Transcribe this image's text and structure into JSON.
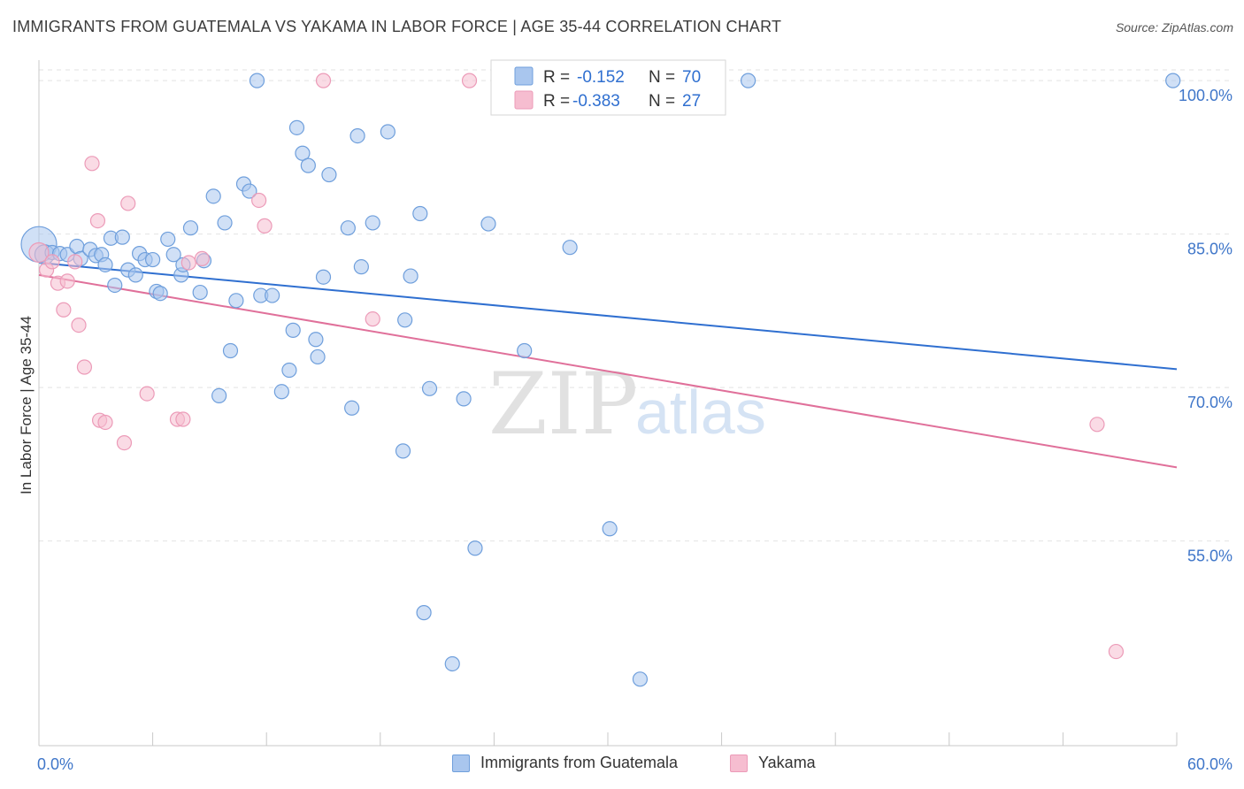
{
  "title": "IMMIGRANTS FROM GUATEMALA VS YAKAMA IN LABOR FORCE | AGE 35-44 CORRELATION CHART",
  "source": "Source: ZipAtlas.com",
  "watermark": {
    "zip": "ZIP",
    "atlas": "atlas"
  },
  "colors": {
    "blue": "#2f6fd0",
    "blue_fill": "#a9c6ee",
    "blue_stroke": "#6f9fdc",
    "pink": "#e0709a",
    "pink_fill": "#f6bdd0",
    "pink_stroke": "#ec9bb8",
    "axis_label": "#3f76c9",
    "grid": "#e2e2e2"
  },
  "legend_box": {
    "rows": [
      {
        "r_label": "R =",
        "r_value": "-0.152",
        "n_label": "N =",
        "n_value": "70"
      },
      {
        "r_label": "R =",
        "r_value": "-0.383",
        "n_label": "N =",
        "n_value": "27"
      }
    ]
  },
  "legend": {
    "items": [
      "Immigrants from Guatemala",
      "Yakama"
    ]
  },
  "chart_data": {
    "type": "scatter",
    "title": "IMMIGRANTS FROM GUATEMALA VS YAKAMA IN LABOR FORCE | AGE 35-44 CORRELATION CHART",
    "xlabel": "",
    "ylabel": "In Labor Force | Age 35-44",
    "xlim": [
      0,
      60
    ],
    "ylim": [
      35,
      102
    ],
    "x_ticks": [
      0,
      6,
      12,
      18,
      24,
      30,
      36,
      42,
      48,
      54,
      60
    ],
    "x_tick_labels": {
      "min": "0.0%",
      "max": "60.0%"
    },
    "y_ticks": [
      100,
      85,
      70,
      55
    ],
    "y_tick_labels": [
      "100.0%",
      "85.0%",
      "70.0%",
      "55.0%"
    ],
    "series": [
      {
        "name": "Immigrants from Guatemala",
        "color": "#a9c6ee",
        "R": -0.152,
        "N": 70,
        "trend": {
          "x": [
            0,
            60
          ],
          "y": [
            82.2,
            71.8
          ]
        },
        "points": [
          [
            0.0,
            84.0,
            3
          ],
          [
            0.3,
            83.0,
            2
          ],
          [
            0.7,
            83.2,
            1
          ],
          [
            1.1,
            83.1,
            1
          ],
          [
            1.5,
            83.0,
            1
          ],
          [
            2.0,
            83.8,
            1
          ],
          [
            2.2,
            82.6,
            1
          ],
          [
            2.7,
            83.5,
            1
          ],
          [
            3.0,
            82.9,
            1
          ],
          [
            3.3,
            83.0,
            1
          ],
          [
            3.5,
            82.0,
            1
          ],
          [
            3.8,
            84.6,
            1
          ],
          [
            4.0,
            80.0,
            1
          ],
          [
            4.4,
            84.7,
            1
          ],
          [
            4.7,
            81.5,
            1
          ],
          [
            5.1,
            81.0,
            1
          ],
          [
            5.3,
            83.1,
            1
          ],
          [
            5.6,
            82.5,
            1
          ],
          [
            6.0,
            82.5,
            1
          ],
          [
            6.2,
            79.4,
            1
          ],
          [
            6.4,
            79.2,
            1
          ],
          [
            6.8,
            84.5,
            1
          ],
          [
            7.1,
            83.0,
            1
          ],
          [
            7.5,
            81.0,
            1
          ],
          [
            7.6,
            82.0,
            1
          ],
          [
            8.0,
            85.6,
            1
          ],
          [
            8.5,
            79.3,
            1
          ],
          [
            8.7,
            82.4,
            1
          ],
          [
            9.2,
            88.7,
            1
          ],
          [
            9.5,
            69.2,
            1
          ],
          [
            9.8,
            86.1,
            1
          ],
          [
            10.1,
            73.6,
            1
          ],
          [
            10.4,
            78.5,
            1
          ],
          [
            10.8,
            89.9,
            1
          ],
          [
            11.1,
            89.2,
            1
          ],
          [
            11.5,
            100.0,
            1
          ],
          [
            11.7,
            79.0,
            1
          ],
          [
            12.3,
            79.0,
            1
          ],
          [
            12.8,
            69.6,
            1
          ],
          [
            13.2,
            71.7,
            1
          ],
          [
            13.4,
            75.6,
            1
          ],
          [
            13.6,
            95.4,
            1
          ],
          [
            13.9,
            92.9,
            1
          ],
          [
            14.2,
            91.7,
            1
          ],
          [
            14.6,
            74.7,
            1
          ],
          [
            14.7,
            73.0,
            1
          ],
          [
            15.0,
            80.8,
            1
          ],
          [
            15.3,
            90.8,
            1
          ],
          [
            16.3,
            85.6,
            1
          ],
          [
            16.5,
            68.0,
            1
          ],
          [
            16.8,
            94.6,
            1
          ],
          [
            17.0,
            81.8,
            1
          ],
          [
            17.6,
            86.1,
            1
          ],
          [
            18.4,
            95.0,
            1
          ],
          [
            19.2,
            63.8,
            1
          ],
          [
            19.3,
            76.6,
            1
          ],
          [
            19.6,
            80.9,
            1
          ],
          [
            20.1,
            87.0,
            1
          ],
          [
            20.6,
            69.9,
            1
          ],
          [
            22.4,
            68.9,
            1
          ],
          [
            23.0,
            54.3,
            1
          ],
          [
            23.7,
            86.0,
            1
          ],
          [
            25.6,
            73.6,
            1
          ],
          [
            28.0,
            83.7,
            1
          ],
          [
            30.1,
            56.2,
            1
          ],
          [
            31.7,
            41.5,
            1
          ],
          [
            37.4,
            100.0,
            1
          ],
          [
            59.8,
            100.0,
            1
          ],
          [
            20.3,
            48.0,
            1
          ],
          [
            21.8,
            43.0,
            1
          ]
        ]
      },
      {
        "name": "Yakama",
        "color": "#f6bdd0",
        "R": -0.383,
        "N": 27,
        "trend": {
          "x": [
            0,
            60
          ],
          "y": [
            81.0,
            62.2
          ]
        },
        "points": [
          [
            0.0,
            83.2,
            2
          ],
          [
            0.4,
            81.5,
            1
          ],
          [
            0.7,
            82.3,
            1
          ],
          [
            1.0,
            80.2,
            1
          ],
          [
            1.3,
            77.6,
            1
          ],
          [
            1.5,
            80.4,
            1
          ],
          [
            1.9,
            82.3,
            1
          ],
          [
            2.1,
            76.1,
            1
          ],
          [
            2.4,
            72.0,
            1
          ],
          [
            2.8,
            91.9,
            1
          ],
          [
            3.1,
            86.3,
            1
          ],
          [
            3.2,
            66.8,
            1
          ],
          [
            3.5,
            66.6,
            1
          ],
          [
            4.5,
            64.6,
            1
          ],
          [
            4.7,
            88.0,
            1
          ],
          [
            5.7,
            69.4,
            1
          ],
          [
            7.3,
            66.9,
            1
          ],
          [
            7.6,
            66.9,
            1
          ],
          [
            7.9,
            82.2,
            1
          ],
          [
            8.6,
            82.6,
            1
          ],
          [
            11.6,
            88.3,
            1
          ],
          [
            11.9,
            85.8,
            1
          ],
          [
            15.0,
            100.0,
            1
          ],
          [
            17.6,
            76.7,
            1
          ],
          [
            22.7,
            100.0,
            1
          ],
          [
            55.8,
            66.4,
            1
          ],
          [
            56.8,
            44.2,
            1
          ]
        ]
      }
    ]
  }
}
